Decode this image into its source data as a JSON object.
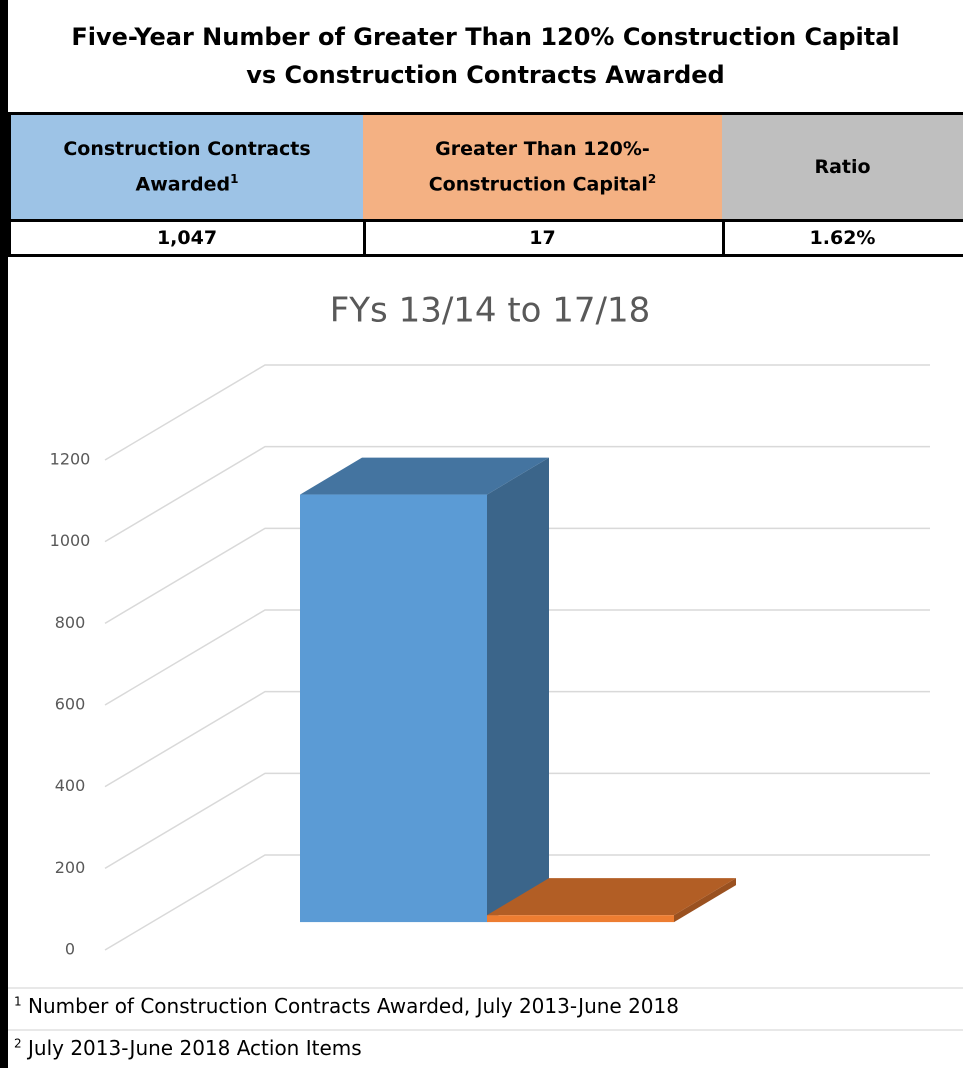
{
  "header": {
    "title": "Five-Year Number of Greater Than 120% Construction Capital vs Construction Contracts Awarded"
  },
  "table": {
    "columns": [
      {
        "text": "Construction Contracts Awarded",
        "note": "1"
      },
      {
        "text": "Greater Than 120%- Construction Capital",
        "note": "2"
      },
      {
        "text": "Ratio"
      }
    ],
    "rows": [
      [
        "1,047",
        "17",
        "1.62%"
      ]
    ]
  },
  "chart_data": {
    "type": "bar",
    "title": "FYs 13/14 to 17/18",
    "categories": [
      null,
      null
    ],
    "series": [
      {
        "color": "#5b9bd5",
        "values": [
          1047,
          null
        ]
      },
      {
        "color": "#ed7d31",
        "values": [
          null,
          17
        ]
      }
    ],
    "ylim": [
      0,
      1200
    ],
    "yticks": [
      0,
      200,
      400,
      600,
      800,
      1000,
      1200
    ],
    "grid": true
  },
  "footnotes": [
    {
      "mark": "1",
      "text": "Number of Construction Contracts Awarded, July 2013-June 2018"
    },
    {
      "mark": "2",
      "text": "July 2013-June 2018 Action Items"
    }
  ]
}
